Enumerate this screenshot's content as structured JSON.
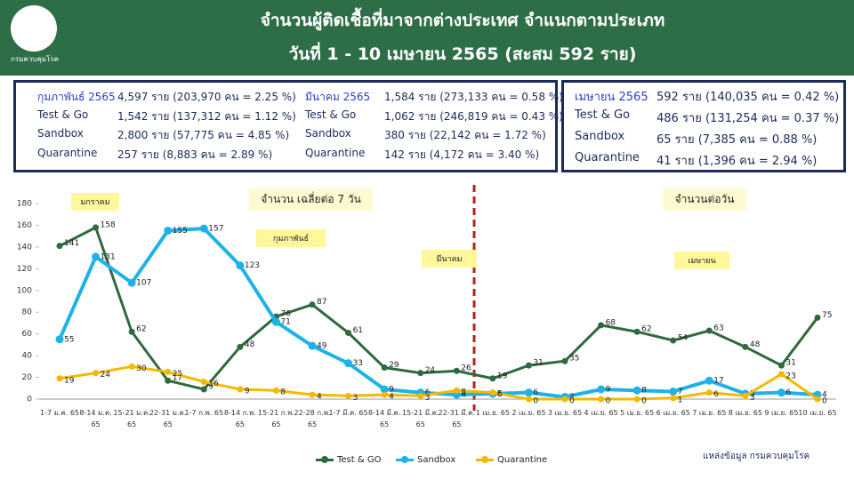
{
  "header": {
    "logo_text": "กรมควบคุมโรค",
    "title": "จำนวนผู้ติดเชื้อที่มาจากต่างประเทศ จำแนกตามประเภท",
    "subtitle": "วันที่  1 - 10 เมษายน  2565 (สะสม 592 ราย)"
  },
  "summary": [
    {
      "rows": [
        [
          "กุมภาพันธ์ 2565",
          "4,597 ราย (203,970 คน = 2.25 %)"
        ],
        [
          "Test & Go",
          "1,542 ราย (137,312 คน = 1.12 %)"
        ],
        [
          "Sandbox",
          "2,800 ราย (57,775 คน = 4.85 %)"
        ],
        [
          "Quarantine",
          "257 ราย (8,883 คน = 2.89 %)"
        ]
      ]
    },
    {
      "rows": [
        [
          "มีนาคม 2565",
          "1,584 ราย (273,133 คน = 0.58 %)"
        ],
        [
          "Test & Go",
          "1,062 ราย (246,819 คน = 0.43 %)"
        ],
        [
          "Sandbox",
          "380 ราย (22,142 คน = 1.72 %)"
        ],
        [
          "Quarantine",
          "142 ราย (4,172 คน = 3.40 %)"
        ]
      ]
    },
    {
      "rows": [
        [
          "เมษายน 2565",
          "592 ราย (140,035 คน = 0.42 %)"
        ],
        [
          "Test & Go",
          "486 ราย (131,254 คน = 0.37 %)"
        ],
        [
          "Sandbox",
          "65 ราย (7,385 คน = 0.88 %)"
        ],
        [
          "Quarantine",
          "41 ราย (1,396 คน = 2.94 %)"
        ]
      ]
    }
  ],
  "chart_data": {
    "type": "line",
    "categories": [
      "1-7 ม.ค. 65",
      "8-14 ม.ค. 65",
      "15-21 ม.ค. 65",
      "22-31 ม.ค. 65",
      "1-7 ก.พ. 65",
      "8-14 ก.พ. 65",
      "15-21 ก.พ. 65",
      "22-28 ก.พ. 65",
      "1-7 มี.ค. 65",
      "8-14 มี.ค. 65",
      "15-21 มี.ค. 65",
      "22-31 มี.ค. 65",
      "1 เม.ย. 65",
      "2 เม.ย. 65",
      "3 เม.ย. 65",
      "4 เม.ย. 65",
      "5 เม.ย. 65",
      "6 เม.ย. 65",
      "7 เม.ย. 65",
      "8 เม.ย. 65",
      "9 เม.ย. 65",
      "10 เม.ย. 65"
    ],
    "series": [
      {
        "name": "Test & GO",
        "color": "#2f6a3c",
        "values": [
          141,
          158,
          62,
          17,
          9,
          48,
          76,
          87,
          61,
          29,
          24,
          26,
          19,
          31,
          35,
          68,
          62,
          54,
          63,
          48,
          31,
          75
        ]
      },
      {
        "name": "Sandbox",
        "color": "#1db2ea",
        "values": [
          55,
          131,
          107,
          155,
          157,
          123,
          71,
          49,
          33,
          9,
          6,
          4,
          5,
          6,
          2,
          9,
          8,
          7,
          17,
          5,
          6,
          4
        ]
      },
      {
        "name": "Quarantine",
        "color": "#f5b800",
        "values": [
          19,
          24,
          30,
          25,
          16,
          9,
          8,
          4,
          3,
          4,
          3,
          8,
          6,
          0,
          0,
          0,
          0,
          1,
          6,
          3,
          23,
          0
        ]
      }
    ],
    "ylim": [
      0,
      180
    ],
    "yticks": [
      0,
      20,
      40,
      60,
      80,
      100,
      120,
      140,
      160,
      180
    ],
    "annotations": [
      "จำนวน เฉลี่ยต่อ 7 วัน",
      "จำนวนต่อวัน",
      "มกราคม",
      "กุมภาพันธ์",
      "มีนาคม",
      "เมษายน"
    ],
    "source": "แหล่งข้อมูล กรมควบคุมโรค"
  }
}
